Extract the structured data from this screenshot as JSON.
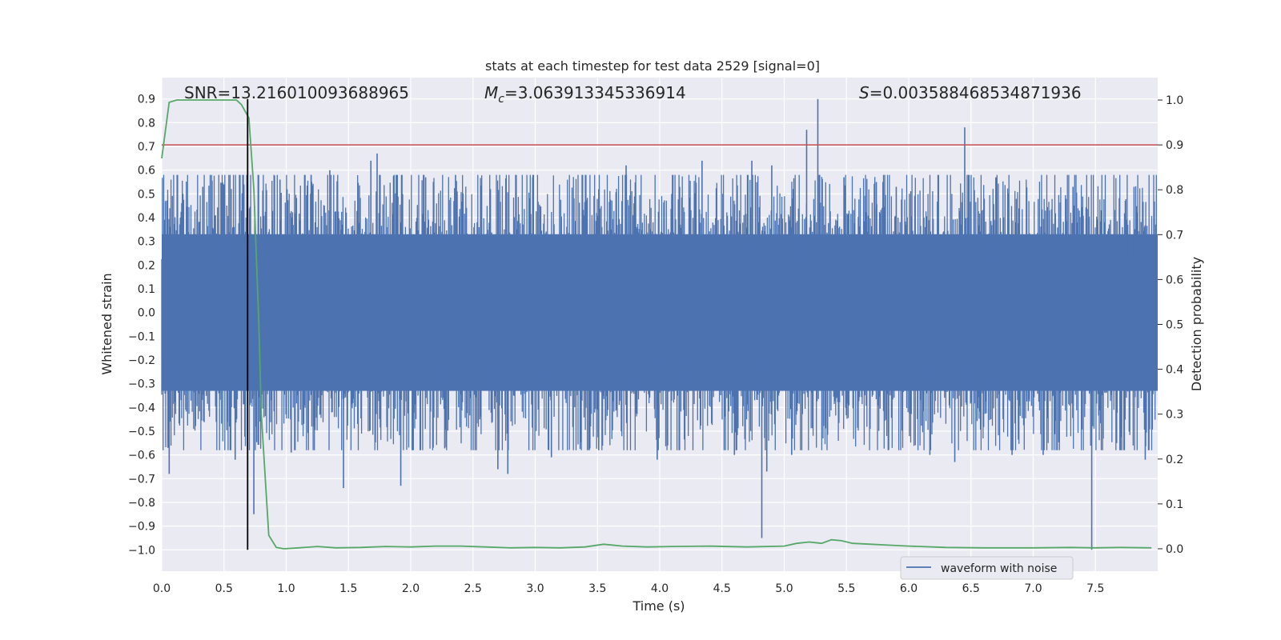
{
  "chart_data": {
    "type": "line",
    "title": "stats at each timestep for test data 2529 [signal=0]",
    "xlabel": "Time (s)",
    "ylabel_left": "Whitened strain",
    "ylabel_right": "Detection probability",
    "xlim": [
      0.0,
      8.0
    ],
    "ylim_left": [
      -1.09,
      0.99
    ],
    "ylim_right": [
      -0.05,
      1.05
    ],
    "x_ticks": [
      0.0,
      0.5,
      1.0,
      1.5,
      2.0,
      2.5,
      3.0,
      3.5,
      4.0,
      4.5,
      5.0,
      5.5,
      6.0,
      6.5,
      7.0,
      7.5
    ],
    "x_tick_labels": [
      "0.0",
      "0.5",
      "1.0",
      "1.5",
      "2.0",
      "2.5",
      "3.0",
      "3.5",
      "4.0",
      "4.5",
      "5.0",
      "5.5",
      "6.0",
      "6.5",
      "7.0",
      "7.5"
    ],
    "y_left_ticks": [
      0.9,
      0.8,
      0.7,
      0.6,
      0.5,
      0.4,
      0.3,
      0.2,
      0.1,
      0.0,
      -0.1,
      -0.2,
      -0.3,
      -0.4,
      -0.5,
      -0.6,
      -0.7,
      -0.8,
      -0.9,
      -1.0
    ],
    "y_left_tick_labels": [
      "0.9",
      "0.8",
      "0.7",
      "0.6",
      "0.5",
      "0.4",
      "0.3",
      "0.2",
      "0.1",
      "0.0",
      "−0.1",
      "−0.2",
      "−0.3",
      "−0.4",
      "−0.5",
      "−0.6",
      "−0.7",
      "−0.8",
      "−0.9",
      "−1.0"
    ],
    "y_right_ticks": [
      1.0,
      0.9,
      0.8,
      0.7,
      0.6,
      0.5,
      0.4,
      0.3,
      0.2,
      0.1,
      0.0
    ],
    "y_right_tick_labels": [
      "1.0",
      "0.9",
      "0.8",
      "0.7",
      "0.6",
      "0.5",
      "0.4",
      "0.3",
      "0.2",
      "0.1",
      "0.0"
    ],
    "annotations": {
      "snr": "SNR=13.216010093688965",
      "mc_symbol": "M",
      "mc_subscript": "c",
      "mc_value": "=3.063913345336914",
      "s_symbol": "S",
      "s_value": "=0.003588468534871936"
    },
    "threshold_line": {
      "axis": "right",
      "value": 0.9,
      "color": "#c44e52"
    },
    "vertical_marker": {
      "x": 0.69,
      "y_from": -1.0,
      "y_to": 0.9,
      "color": "#000000"
    },
    "legend": {
      "label": "waveform with noise",
      "position": "lower-right"
    },
    "waveform": {
      "name": "waveform with noise",
      "color": "#4c72b0",
      "envelope_typical": 0.32,
      "spikes": [
        {
          "x": 0.03,
          "y": 0.47
        },
        {
          "x": 0.05,
          "y": -0.57
        },
        {
          "x": 0.06,
          "y": -0.68
        },
        {
          "x": 0.17,
          "y": 0.5
        },
        {
          "x": 0.33,
          "y": 0.53
        },
        {
          "x": 0.5,
          "y": 0.54
        },
        {
          "x": 0.59,
          "y": -0.62
        },
        {
          "x": 0.66,
          "y": 0.54
        },
        {
          "x": 0.74,
          "y": -0.85
        },
        {
          "x": 0.95,
          "y": 0.56
        },
        {
          "x": 1.04,
          "y": -0.59
        },
        {
          "x": 1.2,
          "y": 0.58
        },
        {
          "x": 1.35,
          "y": 0.6
        },
        {
          "x": 1.46,
          "y": -0.74
        },
        {
          "x": 1.68,
          "y": 0.64
        },
        {
          "x": 1.73,
          "y": 0.67
        },
        {
          "x": 1.92,
          "y": -0.73
        },
        {
          "x": 2.12,
          "y": 0.57
        },
        {
          "x": 2.36,
          "y": 0.58
        },
        {
          "x": 2.64,
          "y": 0.52
        },
        {
          "x": 2.7,
          "y": -0.66
        },
        {
          "x": 2.78,
          "y": -0.68
        },
        {
          "x": 2.98,
          "y": 0.57
        },
        {
          "x": 3.13,
          "y": -0.61
        },
        {
          "x": 3.51,
          "y": -0.58
        },
        {
          "x": 3.73,
          "y": 0.62
        },
        {
          "x": 3.98,
          "y": -0.62
        },
        {
          "x": 4.16,
          "y": 0.53
        },
        {
          "x": 4.34,
          "y": 0.64
        },
        {
          "x": 4.6,
          "y": -0.6
        },
        {
          "x": 4.74,
          "y": 0.64
        },
        {
          "x": 4.82,
          "y": -0.95
        },
        {
          "x": 4.86,
          "y": -0.67
        },
        {
          "x": 4.9,
          "y": 0.62
        },
        {
          "x": 5.06,
          "y": -0.6
        },
        {
          "x": 5.18,
          "y": 0.77
        },
        {
          "x": 5.27,
          "y": 0.9
        },
        {
          "x": 5.48,
          "y": 0.57
        },
        {
          "x": 5.74,
          "y": 0.55
        },
        {
          "x": 5.9,
          "y": 0.53
        },
        {
          "x": 6.17,
          "y": -0.6
        },
        {
          "x": 6.37,
          "y": -0.63
        },
        {
          "x": 6.45,
          "y": 0.78
        },
        {
          "x": 6.7,
          "y": 0.57
        },
        {
          "x": 6.83,
          "y": -0.6
        },
        {
          "x": 7.08,
          "y": -0.6
        },
        {
          "x": 7.32,
          "y": 0.53
        },
        {
          "x": 7.47,
          "y": -1.0
        },
        {
          "x": 7.67,
          "y": -0.55
        },
        {
          "x": 7.81,
          "y": 0.53
        },
        {
          "x": 7.9,
          "y": -0.62
        }
      ]
    },
    "detection_probability": {
      "color": "#55a868",
      "x": [
        0.0,
        0.06,
        0.12,
        0.2,
        0.4,
        0.6,
        0.64,
        0.7,
        0.74,
        0.78,
        0.8,
        0.86,
        0.92,
        0.98,
        1.1,
        1.25,
        1.4,
        1.6,
        1.8,
        2.0,
        2.2,
        2.4,
        2.6,
        2.8,
        3.0,
        3.2,
        3.4,
        3.55,
        3.7,
        3.9,
        4.1,
        4.4,
        4.7,
        5.0,
        5.1,
        5.2,
        5.3,
        5.38,
        5.46,
        5.55,
        5.7,
        5.85,
        6.0,
        6.3,
        6.6,
        7.0,
        7.3,
        7.5,
        7.7,
        7.95
      ],
      "y": [
        0.87,
        0.995,
        1.0,
        1.0,
        1.0,
        1.0,
        0.99,
        0.96,
        0.8,
        0.5,
        0.3,
        0.03,
        0.003,
        0.0,
        0.002,
        0.005,
        0.002,
        0.003,
        0.005,
        0.004,
        0.006,
        0.006,
        0.004,
        0.002,
        0.003,
        0.002,
        0.004,
        0.01,
        0.006,
        0.004,
        0.005,
        0.006,
        0.004,
        0.006,
        0.012,
        0.015,
        0.012,
        0.02,
        0.018,
        0.012,
        0.01,
        0.008,
        0.006,
        0.003,
        0.002,
        0.002,
        0.003,
        0.002,
        0.003,
        0.002
      ]
    }
  }
}
